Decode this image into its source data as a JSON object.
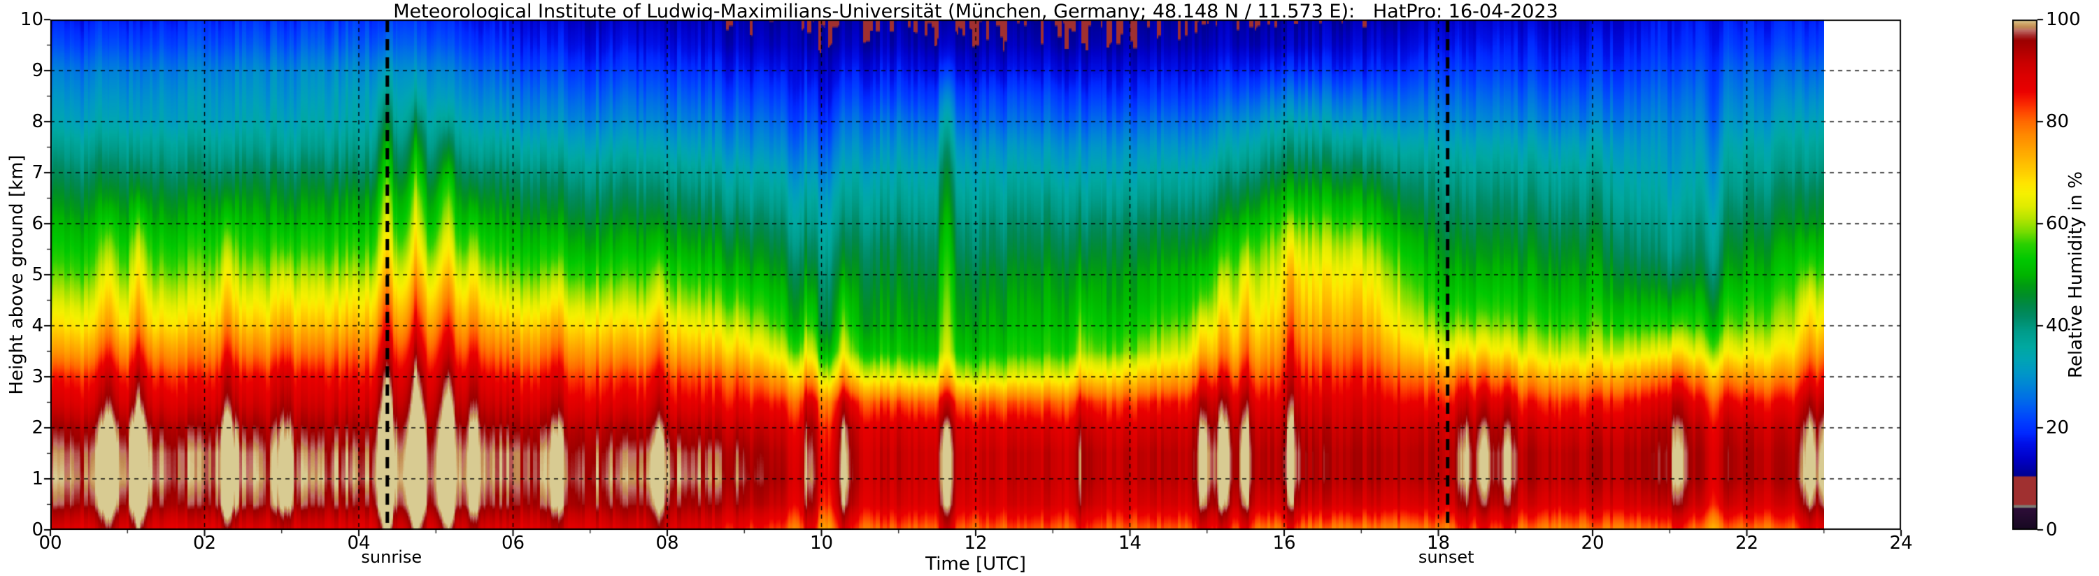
{
  "title": "Meteorological Institute of Ludwig-Maximilians-Universität (München, Germany; 48.148 N / 11.573 E):   HatPro: 16-04-2023",
  "plot": {
    "xlabel": "Time [UTC]",
    "ylabel": "Height above ground [km]",
    "x_ticks": [
      "00",
      "02",
      "04",
      "06",
      "08",
      "10",
      "12",
      "14",
      "16",
      "18",
      "20",
      "22",
      "24"
    ],
    "x_tick_hours": [
      0,
      2,
      4,
      6,
      8,
      10,
      12,
      14,
      16,
      18,
      20,
      22,
      24
    ],
    "y_ticks": [
      "0",
      "1",
      "2",
      "3",
      "4",
      "5",
      "6",
      "7",
      "8",
      "9",
      "10"
    ],
    "x_range_hours": [
      0,
      24
    ],
    "y_range_km": [
      0,
      10
    ],
    "grid": "dashed black, every 2 h and every 1 km",
    "annotations": [
      {
        "label": "sunrise",
        "time": 4.37
      },
      {
        "label": "sunset",
        "time": 18.12
      }
    ]
  },
  "colorbar": {
    "label": "Relative Humidity in %",
    "ticks": [
      0,
      20,
      40,
      60,
      80,
      100
    ],
    "colormap": [
      [
        0,
        "#160820"
      ],
      [
        4.3,
        "#2d0d38"
      ],
      [
        4.5,
        "#7d7d74"
      ],
      [
        4.8,
        "#7d7d74"
      ],
      [
        5.0,
        "#a03030"
      ],
      [
        10.4,
        "#a03030"
      ],
      [
        10.6,
        "#000090"
      ],
      [
        14,
        "#0000c8"
      ],
      [
        17,
        "#0010e8"
      ],
      [
        19,
        "#0028ff"
      ],
      [
        21.5,
        "#0040ff"
      ],
      [
        23.5,
        "#0056f6"
      ],
      [
        26,
        "#0070e6"
      ],
      [
        28.5,
        "#0086d6"
      ],
      [
        31,
        "#0098c6"
      ],
      [
        33.5,
        "#00a4b4"
      ],
      [
        36,
        "#00a8a0"
      ],
      [
        39,
        "#009c8a"
      ],
      [
        42,
        "#008a62"
      ],
      [
        44,
        "#008848"
      ],
      [
        46,
        "#008e28"
      ],
      [
        48,
        "#009c12"
      ],
      [
        50,
        "#00b400"
      ],
      [
        53,
        "#00c800"
      ],
      [
        56,
        "#2ad000"
      ],
      [
        58.5,
        "#78dc00"
      ],
      [
        61,
        "#b4e400"
      ],
      [
        63.5,
        "#e0ec00"
      ],
      [
        66,
        "#f6f000"
      ],
      [
        68,
        "#ffe400"
      ],
      [
        70,
        "#ffd000"
      ],
      [
        72.5,
        "#ffb800"
      ],
      [
        75,
        "#ffa000"
      ],
      [
        77.5,
        "#ff8800"
      ],
      [
        80,
        "#ff6a00"
      ],
      [
        82,
        "#ff4600"
      ],
      [
        84,
        "#f82000"
      ],
      [
        86,
        "#ea0000"
      ],
      [
        89,
        "#dc0000"
      ],
      [
        92,
        "#c60000"
      ],
      [
        94,
        "#b00000"
      ],
      [
        96,
        "#9c0000"
      ],
      [
        97,
        "#a83030"
      ],
      [
        98,
        "#c07068"
      ],
      [
        98.6,
        "#c08a52"
      ],
      [
        99.2,
        "#cfa468"
      ],
      [
        100,
        "#d8cb92"
      ]
    ]
  },
  "chart_data": {
    "type": "heatmap",
    "unit": "%",
    "x_hours": [
      0,
      1,
      2,
      3,
      4,
      5,
      6,
      7,
      8,
      9,
      10,
      11,
      12,
      13,
      14,
      15,
      16,
      17,
      18,
      19,
      20,
      21,
      22,
      23
    ],
    "data_end_hour": 23,
    "heights_km": [
      0,
      0.5,
      1,
      1.5,
      2,
      2.5,
      3,
      3.5,
      4,
      4.5,
      5,
      5.5,
      6,
      6.5,
      7,
      7.5,
      8,
      8.5,
      9,
      9.5,
      10
    ],
    "values_note": "relative humidity %, one array per hour, ordered bottom (0 km) to top (10 km)",
    "values": [
      [
        88,
        97,
        99,
        98,
        95,
        89,
        84,
        75,
        68,
        62,
        57,
        53,
        50,
        46,
        42,
        38,
        33,
        30,
        27,
        22,
        18
      ],
      [
        88,
        96,
        99,
        98,
        95,
        89,
        84,
        76,
        68,
        63,
        58,
        54,
        50,
        46,
        42,
        38,
        33,
        30,
        27,
        22,
        18
      ],
      [
        87,
        96,
        98,
        98,
        95,
        89,
        84,
        77,
        70,
        64,
        59,
        55,
        51,
        47,
        42,
        38,
        33,
        31,
        28,
        23,
        19
      ],
      [
        87,
        96,
        98,
        97,
        94,
        89,
        85,
        77,
        70,
        64,
        59,
        54,
        50,
        46,
        42,
        37,
        33,
        30,
        28,
        23,
        19
      ],
      [
        88,
        96,
        99,
        98,
        95,
        90,
        86,
        80,
        73,
        67,
        61,
        56,
        52,
        48,
        43,
        39,
        35,
        33,
        30,
        25,
        21
      ],
      [
        89,
        97,
        99,
        98,
        96,
        92,
        88,
        82,
        76,
        70,
        64,
        58,
        53,
        49,
        44,
        40,
        36,
        32,
        29,
        24,
        20
      ],
      [
        88,
        96,
        98,
        98,
        95,
        90,
        85,
        78,
        71,
        64,
        58,
        53,
        49,
        45,
        41,
        36,
        31,
        27,
        23,
        19,
        16
      ],
      [
        88,
        96,
        98,
        97,
        94,
        88,
        83,
        76,
        69,
        62,
        56,
        51,
        47,
        43,
        39,
        34,
        29,
        25,
        21,
        17,
        14
      ],
      [
        88,
        95,
        98,
        97,
        93,
        87,
        82,
        74,
        67,
        60,
        55,
        50,
        46,
        42,
        38,
        33,
        28,
        24,
        20,
        16,
        13
      ],
      [
        85,
        94,
        97,
        96,
        92,
        86,
        80,
        70,
        62,
        56,
        51,
        47,
        43,
        39,
        35,
        30,
        26,
        22,
        18,
        14,
        12
      ],
      [
        80,
        89,
        92,
        91,
        89,
        83,
        68,
        56,
        50,
        48,
        46,
        43,
        40,
        37,
        33,
        29,
        25,
        21,
        17,
        13,
        11
      ],
      [
        80,
        89,
        91,
        91,
        89,
        81,
        64,
        52,
        49,
        47,
        45,
        43,
        40,
        37,
        34,
        30,
        26,
        21,
        17,
        13,
        11
      ],
      [
        80,
        89,
        91,
        91,
        88,
        80,
        62,
        52,
        49,
        47,
        45,
        42,
        40,
        37,
        34,
        30,
        25,
        21,
        16,
        12,
        10
      ],
      [
        80,
        89,
        91,
        91,
        88,
        80,
        64,
        54,
        51,
        49,
        47,
        44,
        41,
        38,
        34,
        30,
        25,
        21,
        16,
        12,
        10
      ],
      [
        80,
        89,
        92,
        92,
        89,
        83,
        70,
        58,
        53,
        50,
        48,
        45,
        42,
        38,
        34,
        30,
        25,
        20,
        16,
        12,
        10
      ],
      [
        80,
        90,
        93,
        93,
        91,
        86,
        76,
        66,
        60,
        55,
        52,
        48,
        44,
        40,
        36,
        31,
        26,
        21,
        17,
        13,
        11
      ],
      [
        78,
        90,
        94,
        94,
        92,
        88,
        83,
        78,
        73,
        69,
        66,
        62,
        57,
        51,
        45,
        40,
        34,
        27,
        20,
        14,
        12
      ],
      [
        78,
        90,
        94,
        94,
        92,
        89,
        85,
        80,
        75,
        71,
        67,
        62,
        56,
        50,
        44,
        38,
        31,
        25,
        19,
        15,
        12
      ],
      [
        78,
        89,
        93,
        93,
        91,
        85,
        77,
        66,
        58,
        53,
        50,
        47,
        44,
        41,
        38,
        34,
        29,
        25,
        21,
        17,
        14
      ],
      [
        78,
        89,
        93,
        93,
        90,
        84,
        74,
        63,
        56,
        52,
        49,
        46,
        43,
        40,
        37,
        33,
        28,
        24,
        20,
        17,
        14
      ],
      [
        78,
        89,
        93,
        93,
        90,
        84,
        73,
        62,
        56,
        52,
        49,
        46,
        43,
        40,
        37,
        33,
        28,
        24,
        20,
        17,
        14
      ],
      [
        79,
        91,
        95,
        95,
        93,
        88,
        78,
        64,
        54,
        48,
        43,
        39,
        37,
        34,
        32,
        30,
        28,
        25,
        22,
        19,
        17
      ],
      [
        79,
        90,
        94,
        94,
        92,
        86,
        76,
        65,
        58,
        54,
        50,
        47,
        44,
        41,
        38,
        35,
        31,
        28,
        25,
        21,
        18
      ],
      [
        80,
        90,
        94,
        93,
        91,
        86,
        78,
        70,
        64,
        60,
        56,
        52,
        48,
        45,
        41,
        38,
        34,
        30,
        26,
        22,
        19
      ]
    ],
    "plumes_note": "narrow vertical moist (+) / dry (-) streaks visible in the image: t hour, top km, strength %",
    "plumes": [
      {
        "t": 0.75,
        "top": 6.0,
        "s": 8
      },
      {
        "t": 1.15,
        "top": 6.3,
        "s": 11
      },
      {
        "t": 2.3,
        "top": 6.0,
        "s": 9
      },
      {
        "t": 3.05,
        "top": 5.3,
        "s": 6
      },
      {
        "t": 4.35,
        "top": 8.5,
        "s": 12
      },
      {
        "t": 4.75,
        "top": 8.2,
        "s": 12
      },
      {
        "t": 5.15,
        "top": 7.6,
        "s": 10
      },
      {
        "t": 5.5,
        "top": 6.2,
        "s": 7
      },
      {
        "t": 6.55,
        "top": 5.2,
        "s": 5
      },
      {
        "t": 7.9,
        "top": 5.4,
        "s": 6
      },
      {
        "t": 9.65,
        "top": 9.0,
        "s": -7
      },
      {
        "t": 9.85,
        "top": 4.4,
        "s": 8
      },
      {
        "t": 10.05,
        "top": 9.0,
        "s": -6
      },
      {
        "t": 10.3,
        "top": 4.6,
        "s": 9
      },
      {
        "t": 11.62,
        "top": 8.8,
        "s": 11
      },
      {
        "t": 13.4,
        "top": 4.6,
        "s": 6
      },
      {
        "t": 14.95,
        "top": 4.3,
        "s": 10
      },
      {
        "t": 15.2,
        "top": 5.1,
        "s": 9
      },
      {
        "t": 15.5,
        "top": 5.4,
        "s": 9
      },
      {
        "t": 16.1,
        "top": 5.6,
        "s": 8
      },
      {
        "t": 18.35,
        "top": 3.6,
        "s": 8
      },
      {
        "t": 18.6,
        "top": 3.7,
        "s": 8
      },
      {
        "t": 18.9,
        "top": 3.5,
        "s": 7
      },
      {
        "t": 21.1,
        "top": 4.1,
        "s": 7
      },
      {
        "t": 21.55,
        "top": 9.0,
        "s": -5
      },
      {
        "t": 22.8,
        "top": 5.0,
        "s": 10
      },
      {
        "t": 23.0,
        "top": 4.2,
        "s": 8
      }
    ],
    "render_hints": {
      "column_jitter_pct": 2.2,
      "column_width_minutes": 3,
      "legend_position": "right"
    }
  }
}
